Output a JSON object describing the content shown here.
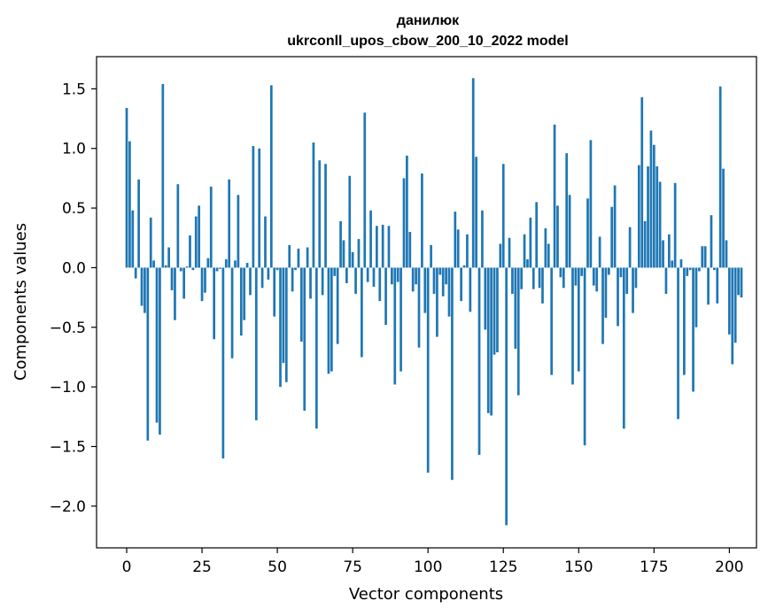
{
  "chart_data": {
    "type": "bar",
    "title_lines": [
      "данилюк",
      "ukrconll_upos_cbow_200_10_2022 model"
    ],
    "xlabel": "Vector components",
    "ylabel": "Components values",
    "xlim": [
      -10,
      209
    ],
    "ylim": [
      -2.35,
      1.77
    ],
    "xticks": [
      0,
      25,
      50,
      75,
      100,
      125,
      150,
      175,
      200
    ],
    "yticks": [
      -2.0,
      -1.5,
      -1.0,
      -0.5,
      0.0,
      0.5,
      1.0,
      1.5
    ],
    "ytick_labels": [
      "−2.0",
      "−1.5",
      "−1.0",
      "−0.5",
      "0.0",
      "0.5",
      "1.0",
      "1.5"
    ],
    "bar_color": "#1f77b4",
    "grid": false,
    "values": [
      1.34,
      1.06,
      0.48,
      -0.09,
      0.74,
      -0.32,
      -0.38,
      -1.45,
      0.42,
      0.06,
      -1.3,
      -1.4,
      1.54,
      0.02,
      0.17,
      -0.19,
      -0.44,
      0.7,
      -0.03,
      -0.26,
      0.01,
      0.27,
      -0.02,
      0.43,
      0.52,
      -0.28,
      -0.21,
      0.08,
      0.68,
      -0.6,
      -0.03,
      -0.01,
      -1.6,
      0.07,
      0.74,
      -0.76,
      0.06,
      0.61,
      -0.57,
      -0.44,
      0.04,
      -0.23,
      1.02,
      -1.28,
      1.0,
      -0.17,
      0.43,
      -0.1,
      1.53,
      -0.41,
      -0.02,
      -1.0,
      -0.8,
      -0.96,
      0.19,
      -0.2,
      -0.02,
      0.16,
      -0.62,
      -1.2,
      0.17,
      -0.26,
      1.05,
      -1.35,
      0.9,
      -0.23,
      0.87,
      -0.89,
      -0.87,
      -0.07,
      -0.64,
      0.39,
      0.23,
      -0.13,
      0.77,
      0.13,
      -0.22,
      0.24,
      -0.75,
      1.3,
      -0.12,
      0.48,
      -0.16,
      0.35,
      -0.28,
      0.36,
      -0.48,
      0.35,
      -0.14,
      -0.98,
      -0.12,
      -0.87,
      0.75,
      0.94,
      0.3,
      -0.2,
      -0.14,
      -0.67,
      0.79,
      -0.38,
      -1.72,
      0.19,
      -0.22,
      -0.58,
      -0.06,
      -0.24,
      -0.14,
      -0.41,
      -1.78,
      0.47,
      0.32,
      -0.28,
      0.02,
      0.28,
      -0.37,
      1.59,
      0.93,
      -1.57,
      0.48,
      -0.52,
      -1.22,
      -1.24,
      -0.73,
      -0.71,
      0.2,
      0.87,
      -2.16,
      0.25,
      -0.22,
      -0.68,
      -1.07,
      -0.18,
      0.28,
      0.07,
      0.42,
      -0.18,
      0.55,
      -0.17,
      -0.3,
      0.33,
      0.2,
      -0.9,
      1.2,
      0.52,
      -0.08,
      -0.17,
      0.96,
      0.61,
      -0.98,
      -0.15,
      -0.87,
      -0.07,
      -1.49,
      0.58,
      1.07,
      -0.15,
      -0.2,
      0.26,
      -0.64,
      -0.42,
      -0.06,
      0.51,
      0.69,
      -0.49,
      -0.08,
      -1.35,
      -0.22,
      0.34,
      -0.38,
      -0.17,
      0.86,
      1.43,
      0.39,
      0.85,
      1.15,
      1.03,
      0.85,
      0.72,
      0.23,
      -0.22,
      0.28,
      0.06,
      0.71,
      -1.27,
      0.07,
      -0.9,
      -0.07,
      -0.02,
      -1.04,
      -0.5,
      -0.03,
      0.18,
      0.18,
      -0.31,
      0.44,
      -0.02,
      -0.3,
      1.52,
      0.83,
      0.23,
      -0.56,
      -0.81,
      -0.63,
      -0.23,
      -0.25
    ]
  }
}
